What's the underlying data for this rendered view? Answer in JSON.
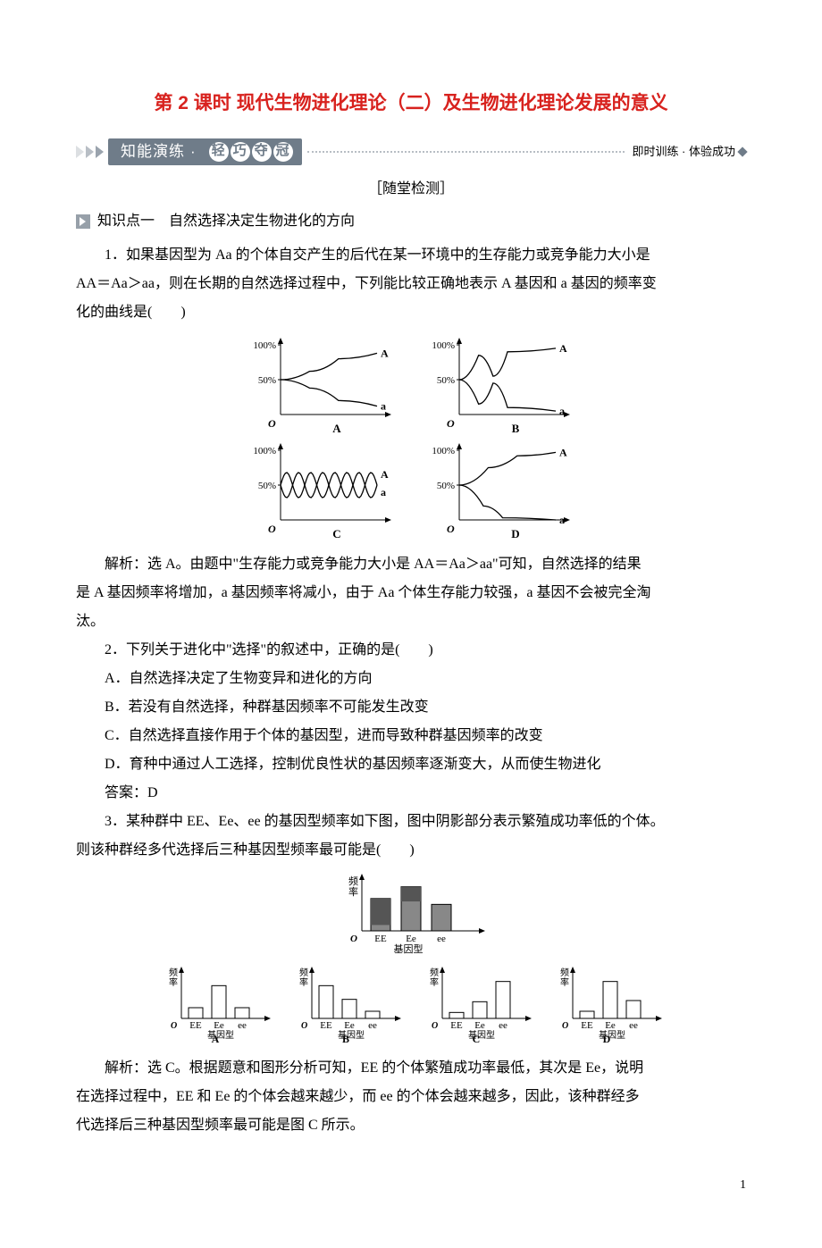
{
  "title": "第 2 课时  现代生物进化理论（二）及生物进化理论发展的意义",
  "banner": {
    "label_plain": "知能演练",
    "bubbles": [
      "轻",
      "巧",
      "夺",
      "冠"
    ],
    "right": "即时训练 · 体验成功"
  },
  "section_marker": "［随堂检测］",
  "kp1": "知识点一　自然选择决定生物进化的方向",
  "q1": {
    "stem1": "1．如果基因型为 Aa 的个体自交产生的后代在某一环境中的生存能力或竞争能力大小是",
    "stem2": "AA＝Aa＞aa，则在长期的自然选择过程中，下列能比较正确地表示 A 基因和 a 基因的频率变",
    "stem3": "化的曲线是(　　)",
    "charts": {
      "type": "line",
      "width": 160,
      "height": 110,
      "axis_color": "#000",
      "grid": false,
      "yticks": [
        {
          "y": 0.5,
          "label": "50%"
        },
        {
          "y": 1.0,
          "label": "100%"
        }
      ],
      "font_size": 12,
      "panels": [
        {
          "id": "A",
          "A_curve": [
            [
              0,
              0.5
            ],
            [
              0.3,
              0.62
            ],
            [
              0.6,
              0.8
            ],
            [
              1,
              0.88
            ]
          ],
          "a_curve": [
            [
              0,
              0.5
            ],
            [
              0.3,
              0.38
            ],
            [
              0.6,
              0.2
            ],
            [
              1,
              0.12
            ]
          ],
          "a_zero": false
        },
        {
          "id": "B",
          "A_curve": [
            [
              0,
              0.5
            ],
            [
              0.2,
              0.85
            ],
            [
              0.35,
              0.55
            ],
            [
              0.5,
              0.9
            ],
            [
              1,
              0.95
            ]
          ],
          "a_curve": [
            [
              0,
              0.5
            ],
            [
              0.2,
              0.15
            ],
            [
              0.35,
              0.45
            ],
            [
              0.5,
              0.1
            ],
            [
              1,
              0.05
            ]
          ],
          "a_zero": false
        },
        {
          "id": "C",
          "osc": true,
          "periods": 4,
          "amp": 0.18
        },
        {
          "id": "D",
          "A_curve": [
            [
              0,
              0.5
            ],
            [
              0.3,
              0.75
            ],
            [
              0.6,
              0.92
            ],
            [
              1,
              0.97
            ]
          ],
          "a_curve": [
            [
              0,
              0.5
            ],
            [
              0.25,
              0.2
            ],
            [
              0.45,
              0.03
            ],
            [
              1,
              0.0
            ]
          ],
          "a_zero": true
        }
      ]
    },
    "expl1": "解析：选 A。由题中\"生存能力或竞争能力大小是 AA＝Aa＞aa\"可知，自然选择的结果",
    "expl2": "是 A 基因频率将增加，a 基因频率将减小，由于 Aa 个体生存能力较强，a 基因不会被完全淘",
    "expl3": "汰。"
  },
  "q2": {
    "stem": "2．下列关于进化中\"选择\"的叙述中，正确的是(　　)",
    "A": "A．自然选择决定了生物变异和进化的方向",
    "B": "B．若没有自然选择，种群基因频率不可能发生改变",
    "C": "C．自然选择直接作用于个体的基因型，进而导致种群基因频率的改变",
    "D": "D．育种中通过人工选择，控制优良性状的基因频率逐渐变大，从而使生物进化",
    "ans": "答案：D"
  },
  "q3": {
    "stem1": "3．某种群中 EE、Ee、ee 的基因型频率如下图，图中阴影部分表示繁殖成功率低的个体。",
    "stem2": "则该种群经多代选择后三种基因型频率最可能是(　　)",
    "top_chart": {
      "type": "bar",
      "categories": [
        "EE",
        "Ee",
        "ee"
      ],
      "values": [
        0.55,
        0.75,
        0.45
      ],
      "shaded": [
        0.45,
        0.25,
        0.0
      ],
      "bar_color": "#888",
      "shade_color": "#555",
      "axis_label_y": "频率",
      "xlabel": "基因型",
      "font_size": 11
    },
    "options": {
      "type": "bar",
      "categories": [
        "EE",
        "Ee",
        "ee"
      ],
      "bar_color": "#fff",
      "stroke": "#000",
      "font_size": 11,
      "xlabel": "基因型",
      "ylabel": "频率",
      "panels": [
        {
          "id": "A",
          "values": [
            0.18,
            0.55,
            0.18
          ]
        },
        {
          "id": "B",
          "values": [
            0.55,
            0.32,
            0.12
          ]
        },
        {
          "id": "C",
          "values": [
            0.1,
            0.28,
            0.62
          ]
        },
        {
          "id": "D",
          "values": [
            0.12,
            0.62,
            0.3
          ]
        }
      ]
    },
    "expl1": "解析：选 C。根据题意和图形分析可知，EE 的个体繁殖成功率最低，其次是 Ee，说明",
    "expl2": "在选择过程中，EE 和 Ee 的个体会越来越少，而 ee 的个体会越来越多，因此，该种群经多",
    "expl3": "代选择后三种基因型频率最可能是图 C 所示。"
  },
  "page_number": "1",
  "colors": {
    "title": "#d8221e",
    "banner": "#6f7c89",
    "text": "#000"
  }
}
